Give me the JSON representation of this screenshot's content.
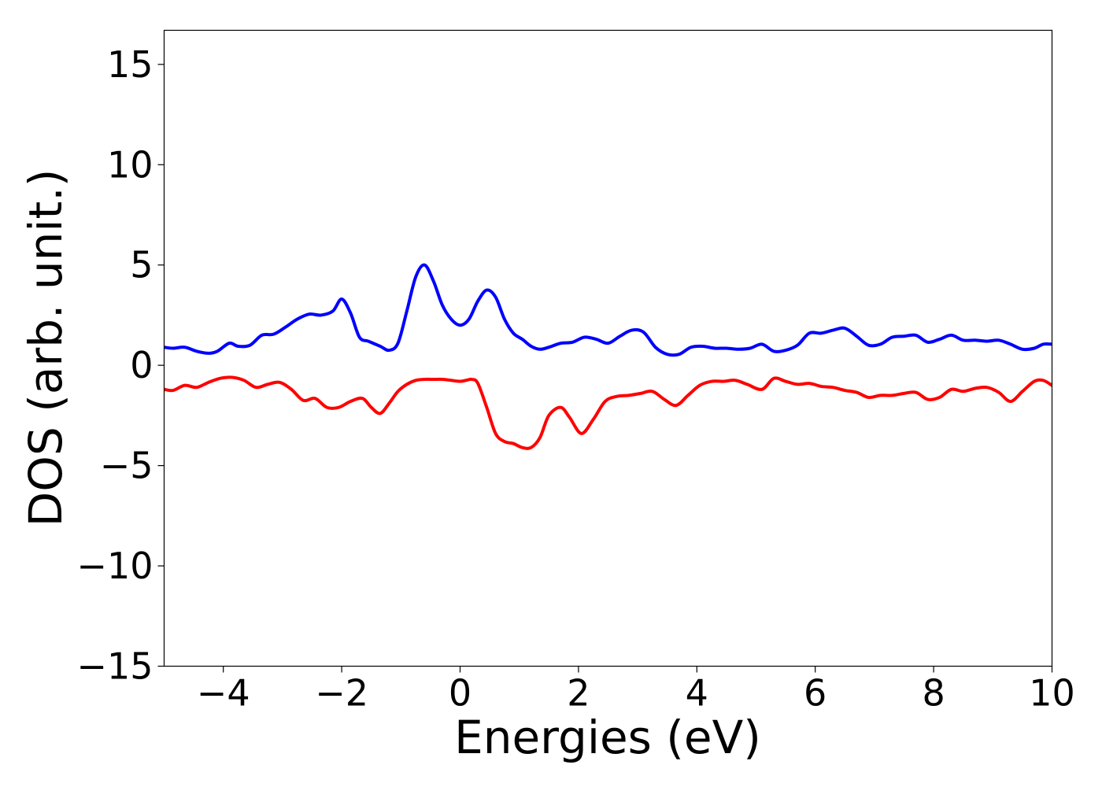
{
  "chart_data": {
    "type": "line",
    "title": "",
    "xlabel": "Energies (eV)",
    "ylabel": "DOS (arb. unit.)",
    "xlim": [
      -5,
      10
    ],
    "ylim": [
      -15,
      16.7
    ],
    "xticks": [
      -4,
      -2,
      0,
      2,
      4,
      6,
      8,
      10
    ],
    "xtick_labels": [
      "−4",
      "−2",
      "0",
      "2",
      "4",
      "6",
      "8",
      "10"
    ],
    "yticks": [
      -15,
      -10,
      -5,
      0,
      5,
      10,
      15
    ],
    "ytick_labels": [
      "−15",
      "−10",
      "−5",
      "0",
      "5",
      "10",
      "15"
    ],
    "grid": false,
    "legend": "none",
    "series": [
      {
        "color": "#0000ff",
        "x": [
          -5.0,
          -4.85,
          -4.65,
          -4.45,
          -4.25,
          -4.1,
          -3.9,
          -3.75,
          -3.55,
          -3.35,
          -3.15,
          -2.95,
          -2.75,
          -2.55,
          -2.35,
          -2.15,
          -2.0,
          -1.85,
          -1.7,
          -1.55,
          -1.35,
          -1.2,
          -1.05,
          -0.9,
          -0.75,
          -0.6,
          -0.45,
          -0.3,
          -0.15,
          0.0,
          0.15,
          0.3,
          0.45,
          0.6,
          0.75,
          0.9,
          1.05,
          1.2,
          1.35,
          1.5,
          1.7,
          1.9,
          2.1,
          2.3,
          2.5,
          2.7,
          2.9,
          3.1,
          3.3,
          3.5,
          3.7,
          3.9,
          4.1,
          4.3,
          4.5,
          4.7,
          4.9,
          5.1,
          5.3,
          5.5,
          5.7,
          5.9,
          6.1,
          6.3,
          6.5,
          6.7,
          6.9,
          7.1,
          7.3,
          7.5,
          7.7,
          7.9,
          8.1,
          8.3,
          8.5,
          8.7,
          8.9,
          9.1,
          9.3,
          9.5,
          9.7,
          9.85,
          10.0
        ],
        "y": [
          0.9,
          0.85,
          0.9,
          0.7,
          0.6,
          0.7,
          1.1,
          0.95,
          1.0,
          1.5,
          1.55,
          1.9,
          2.3,
          2.55,
          2.5,
          2.7,
          3.3,
          2.6,
          1.4,
          1.2,
          0.95,
          0.75,
          1.1,
          2.7,
          4.4,
          5.0,
          4.2,
          3.0,
          2.3,
          2.0,
          2.3,
          3.2,
          3.75,
          3.4,
          2.3,
          1.6,
          1.3,
          0.95,
          0.8,
          0.9,
          1.1,
          1.15,
          1.4,
          1.3,
          1.1,
          1.45,
          1.75,
          1.65,
          0.9,
          0.55,
          0.55,
          0.9,
          0.95,
          0.85,
          0.85,
          0.8,
          0.85,
          1.05,
          0.7,
          0.75,
          1.0,
          1.6,
          1.6,
          1.75,
          1.85,
          1.45,
          1.0,
          1.05,
          1.4,
          1.45,
          1.5,
          1.15,
          1.3,
          1.5,
          1.25,
          1.25,
          1.2,
          1.25,
          1.05,
          0.8,
          0.85,
          1.05,
          1.05
        ]
      },
      {
        "color": "#ff0000",
        "x": [
          -5.0,
          -4.85,
          -4.65,
          -4.45,
          -4.25,
          -4.05,
          -3.85,
          -3.65,
          -3.45,
          -3.25,
          -3.05,
          -2.85,
          -2.65,
          -2.45,
          -2.25,
          -2.05,
          -1.85,
          -1.65,
          -1.5,
          -1.35,
          -1.2,
          -1.05,
          -0.9,
          -0.75,
          -0.6,
          -0.45,
          -0.3,
          -0.15,
          0.0,
          0.1,
          0.2,
          0.3,
          0.45,
          0.6,
          0.75,
          0.9,
          1.05,
          1.2,
          1.35,
          1.5,
          1.7,
          1.85,
          2.05,
          2.25,
          2.45,
          2.65,
          2.85,
          3.05,
          3.25,
          3.45,
          3.65,
          3.85,
          4.05,
          4.25,
          4.45,
          4.65,
          4.85,
          5.1,
          5.3,
          5.5,
          5.7,
          5.9,
          6.1,
          6.3,
          6.5,
          6.7,
          6.9,
          7.1,
          7.3,
          7.5,
          7.7,
          7.9,
          8.1,
          8.3,
          8.5,
          8.7,
          8.9,
          9.1,
          9.3,
          9.5,
          9.7,
          9.85,
          10.0
        ],
        "y": [
          -1.2,
          -1.25,
          -1.0,
          -1.1,
          -0.85,
          -0.65,
          -0.6,
          -0.75,
          -1.1,
          -0.95,
          -0.85,
          -1.2,
          -1.75,
          -1.65,
          -2.1,
          -2.1,
          -1.8,
          -1.65,
          -2.1,
          -2.4,
          -1.9,
          -1.3,
          -0.95,
          -0.75,
          -0.7,
          -0.7,
          -0.7,
          -0.75,
          -0.8,
          -0.75,
          -0.7,
          -0.9,
          -2.1,
          -3.4,
          -3.8,
          -3.9,
          -4.1,
          -4.1,
          -3.6,
          -2.5,
          -2.1,
          -2.6,
          -3.4,
          -2.7,
          -1.8,
          -1.55,
          -1.5,
          -1.4,
          -1.3,
          -1.7,
          -2.0,
          -1.5,
          -1.0,
          -0.8,
          -0.8,
          -0.75,
          -0.95,
          -1.2,
          -0.65,
          -0.8,
          -0.95,
          -0.9,
          -1.05,
          -1.1,
          -1.25,
          -1.35,
          -1.6,
          -1.5,
          -1.5,
          -1.4,
          -1.35,
          -1.7,
          -1.6,
          -1.2,
          -1.3,
          -1.15,
          -1.1,
          -1.35,
          -1.8,
          -1.3,
          -0.8,
          -0.75,
          -1.0
        ]
      }
    ]
  }
}
